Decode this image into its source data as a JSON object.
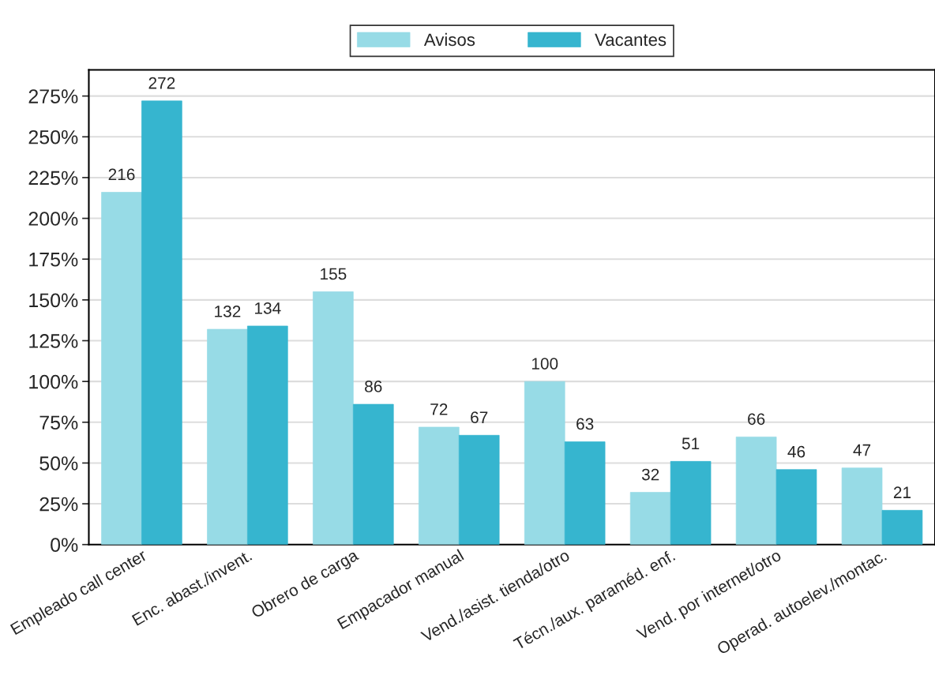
{
  "chart_data": {
    "type": "bar",
    "categories": [
      "Empleado call center",
      "Enc. abast./invent.",
      "Obrero de carga",
      "Empacador manual",
      "Vend./asist. tienda/otro",
      "Técn./aux. paraméd. enf.",
      "Vend. por internet/otro",
      "Operad. autoelev./montac."
    ],
    "series": [
      {
        "name": "Avisos",
        "color": "#97dbe6",
        "values": [
          216,
          132,
          155,
          72,
          100,
          32,
          66,
          47
        ]
      },
      {
        "name": "Vacantes",
        "color": "#36b5cf",
        "values": [
          272,
          134,
          86,
          67,
          63,
          51,
          46,
          21
        ]
      }
    ],
    "ylim": [
      0,
      291
    ],
    "yticks": [
      {
        "value": 0,
        "label": "0%"
      },
      {
        "value": 25,
        "label": "25%"
      },
      {
        "value": 50,
        "label": "50%"
      },
      {
        "value": 75,
        "label": "75%"
      },
      {
        "value": 100,
        "label": "100%"
      },
      {
        "value": 125,
        "label": "125%"
      },
      {
        "value": 150,
        "label": "150%"
      },
      {
        "value": 175,
        "label": "175%"
      },
      {
        "value": 200,
        "label": "200%"
      },
      {
        "value": 225,
        "label": "225%"
      },
      {
        "value": 250,
        "label": "250%"
      },
      {
        "value": 275,
        "label": "275%"
      }
    ],
    "grid": "y",
    "legend": "top",
    "data_labels": true
  }
}
